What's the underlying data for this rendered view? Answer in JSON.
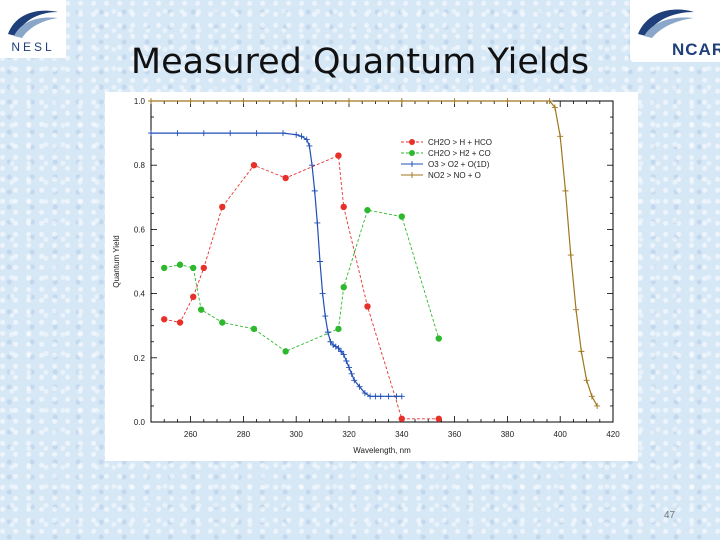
{
  "logos": {
    "left_text": "NESL",
    "right_text": "NCAR"
  },
  "slide": {
    "title": "Measured Quantum Yields",
    "page_number": "47"
  },
  "chart_data": {
    "type": "line",
    "title": "",
    "xlabel": "Wavelength, nm",
    "ylabel": "Quantum Yield",
    "xlim": [
      245,
      420
    ],
    "ylim": [
      0,
      1.0
    ],
    "x_ticks": [
      260,
      280,
      300,
      320,
      340,
      360,
      380,
      400,
      420
    ],
    "y_ticks": [
      0.0,
      0.2,
      0.4,
      0.6,
      0.8,
      1.0
    ],
    "x_tick_labels": [
      "260",
      "280",
      "300",
      "320",
      "340",
      "360",
      "380",
      "400",
      "420"
    ],
    "y_tick_labels": [
      "0.0",
      "0.2",
      "0.4",
      "0.6",
      "0.8",
      "1.0"
    ],
    "grid": false,
    "legend_position": "top-right",
    "series": [
      {
        "name": "CH2O > H + HCO",
        "color": "#e8302a",
        "line_style": "dashed",
        "marker": "circle",
        "x": [
          250,
          256,
          261,
          265,
          272,
          284,
          296,
          316,
          318,
          327,
          340,
          354
        ],
        "y": [
          0.32,
          0.31,
          0.39,
          0.48,
          0.67,
          0.8,
          0.76,
          0.83,
          0.67,
          0.36,
          0.01,
          0.01
        ]
      },
      {
        "name": "CH2O > H2 + CO",
        "color": "#2db82d",
        "line_style": "dashed",
        "marker": "circle",
        "x": [
          250,
          256,
          261,
          264,
          272,
          284,
          296,
          316,
          318,
          327,
          340,
          354
        ],
        "y": [
          0.48,
          0.49,
          0.48,
          0.35,
          0.31,
          0.29,
          0.22,
          0.29,
          0.42,
          0.66,
          0.64,
          0.26
        ]
      },
      {
        "name": "O3 > O2 + O(1D)",
        "color": "#1f4fb5",
        "line_style": "solid",
        "marker": "plus",
        "x": [
          245,
          255,
          265,
          275,
          285,
          295,
          300,
          302,
          304,
          305,
          306,
          307,
          308,
          309,
          310,
          311,
          312,
          313,
          314,
          315,
          316,
          317,
          318,
          319,
          320,
          321,
          322,
          324,
          326,
          328,
          330,
          332,
          335,
          338,
          340
        ],
        "y": [
          0.9,
          0.9,
          0.9,
          0.9,
          0.9,
          0.9,
          0.895,
          0.89,
          0.88,
          0.86,
          0.8,
          0.72,
          0.62,
          0.5,
          0.4,
          0.33,
          0.28,
          0.25,
          0.24,
          0.235,
          0.23,
          0.22,
          0.21,
          0.19,
          0.17,
          0.15,
          0.13,
          0.11,
          0.09,
          0.08,
          0.08,
          0.08,
          0.08,
          0.08,
          0.08
        ]
      },
      {
        "name": "NO2 > NO + O",
        "color": "#a0761d",
        "line_style": "solid",
        "marker": "plus",
        "x": [
          245,
          260,
          280,
          300,
          320,
          340,
          360,
          380,
          396,
          398,
          400,
          402,
          404,
          406,
          408,
          410,
          412,
          414
        ],
        "y": [
          1.0,
          1.0,
          1.0,
          1.0,
          1.0,
          1.0,
          1.0,
          1.0,
          1.0,
          0.98,
          0.89,
          0.72,
          0.52,
          0.35,
          0.22,
          0.13,
          0.08,
          0.05
        ]
      }
    ]
  }
}
